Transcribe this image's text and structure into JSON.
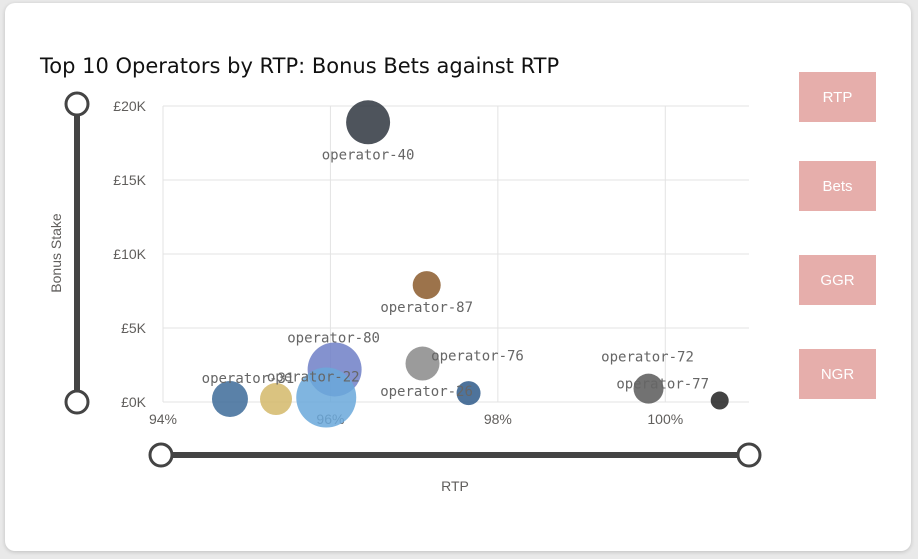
{
  "chart_data": {
    "type": "scatter",
    "title": "Top 10 Operators by RTP: Bonus Bets against RTP",
    "xlabel": "RTP",
    "ylabel": "Bonus Stake",
    "xlim": [
      94,
      101
    ],
    "ylim": [
      0,
      20000
    ],
    "x_ticks": [
      {
        "value": 94,
        "label": "94%"
      },
      {
        "value": 96,
        "label": "96%"
      },
      {
        "value": 98,
        "label": "98%"
      },
      {
        "value": 100,
        "label": "100%"
      }
    ],
    "y_ticks": [
      {
        "value": 0,
        "label": "£0K"
      },
      {
        "value": 5000,
        "label": "£5K"
      },
      {
        "value": 10000,
        "label": "£10K"
      },
      {
        "value": 15000,
        "label": "£15K"
      },
      {
        "value": 20000,
        "label": "£20K"
      }
    ],
    "grid": true,
    "points": [
      {
        "name": "operator-40",
        "x": 96.45,
        "y": 18900,
        "size": 22,
        "color": "#2f3640"
      },
      {
        "name": "operator-87",
        "x": 97.15,
        "y": 7900,
        "size": 14,
        "color": "#8b5a2b"
      },
      {
        "name": "operator-80",
        "x": 96.05,
        "y": 2200,
        "size": 27,
        "color": "#6f7fc7"
      },
      {
        "name": "operator-22",
        "x": 95.95,
        "y": 300,
        "size": 30,
        "color": "#6aa8da"
      },
      {
        "name": "operator-31",
        "x": 95.35,
        "y": 200,
        "size": 16,
        "color": "#d4b86a"
      },
      {
        "name": "",
        "x": 94.8,
        "y": 200,
        "size": 18,
        "color": "#3d6b99"
      },
      {
        "name": "operator-76",
        "x": 97.1,
        "y": 2600,
        "size": 17,
        "color": "#8a8a8a"
      },
      {
        "name": "operator-26",
        "x": 97.65,
        "y": 600,
        "size": 12,
        "color": "#2f5a8a"
      },
      {
        "name": "operator-72",
        "x": 99.8,
        "y": 900,
        "size": 15,
        "color": "#595959"
      },
      {
        "name": "operator-77",
        "x": 100.65,
        "y": 100,
        "size": 9,
        "color": "#222222"
      }
    ]
  },
  "buttons": {
    "rtp": "RTP",
    "bets": "Bets",
    "ggr": "GGR",
    "ngr": "NGR"
  },
  "colors": {
    "button_bg": "#e6aeab",
    "slider": "#444444",
    "grid": "#e3e3e3",
    "axis_text": "#605e5c"
  }
}
